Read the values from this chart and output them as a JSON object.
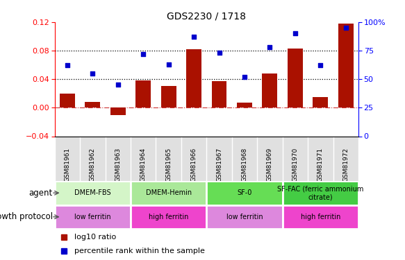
{
  "title": "GDS2230 / 1718",
  "samples": [
    "GSM81961",
    "GSM81962",
    "GSM81963",
    "GSM81964",
    "GSM81965",
    "GSM81966",
    "GSM81967",
    "GSM81968",
    "GSM81969",
    "GSM81970",
    "GSM81971",
    "GSM81972"
  ],
  "log10_ratio": [
    0.02,
    0.008,
    -0.01,
    0.038,
    0.03,
    0.082,
    0.037,
    0.007,
    0.048,
    0.083,
    0.015,
    0.118
  ],
  "percentile_rank": [
    62,
    55,
    45,
    72,
    63,
    87,
    73,
    52,
    78,
    90,
    62,
    95
  ],
  "bar_color": "#aa1100",
  "dot_color": "#0000cc",
  "left_ylim": [
    -0.04,
    0.12
  ],
  "right_ylim": [
    0,
    100
  ],
  "left_yticks": [
    -0.04,
    0,
    0.04,
    0.08,
    0.12
  ],
  "right_yticks": [
    0,
    25,
    50,
    75,
    100
  ],
  "right_yticklabels": [
    "0",
    "25",
    "50",
    "75",
    "100%"
  ],
  "hline_y": [
    0.04,
    0.08
  ],
  "agent_groups": [
    {
      "label": "DMEM-FBS",
      "start": 0,
      "end": 2,
      "color": "#d4f5c8"
    },
    {
      "label": "DMEM-Hemin",
      "start": 3,
      "end": 5,
      "color": "#aae899"
    },
    {
      "label": "SF-0",
      "start": 6,
      "end": 8,
      "color": "#66dd55"
    },
    {
      "label": "SF-FAC (ferric ammonium\ncitrate)",
      "start": 9,
      "end": 11,
      "color": "#44cc44"
    }
  ],
  "protocol_groups": [
    {
      "label": "low ferritin",
      "start": 0,
      "end": 2,
      "color": "#dd88dd"
    },
    {
      "label": "high ferritin",
      "start": 3,
      "end": 5,
      "color": "#ee44cc"
    },
    {
      "label": "low ferritin",
      "start": 6,
      "end": 8,
      "color": "#dd88dd"
    },
    {
      "label": "high ferritin",
      "start": 9,
      "end": 11,
      "color": "#ee44cc"
    }
  ],
  "legend_bar_color": "#aa1100",
  "legend_dot_color": "#0000cc",
  "legend_bar_label": "log10 ratio",
  "legend_dot_label": "percentile rank within the sample",
  "agent_label": "agent",
  "protocol_label": "growth protocol"
}
